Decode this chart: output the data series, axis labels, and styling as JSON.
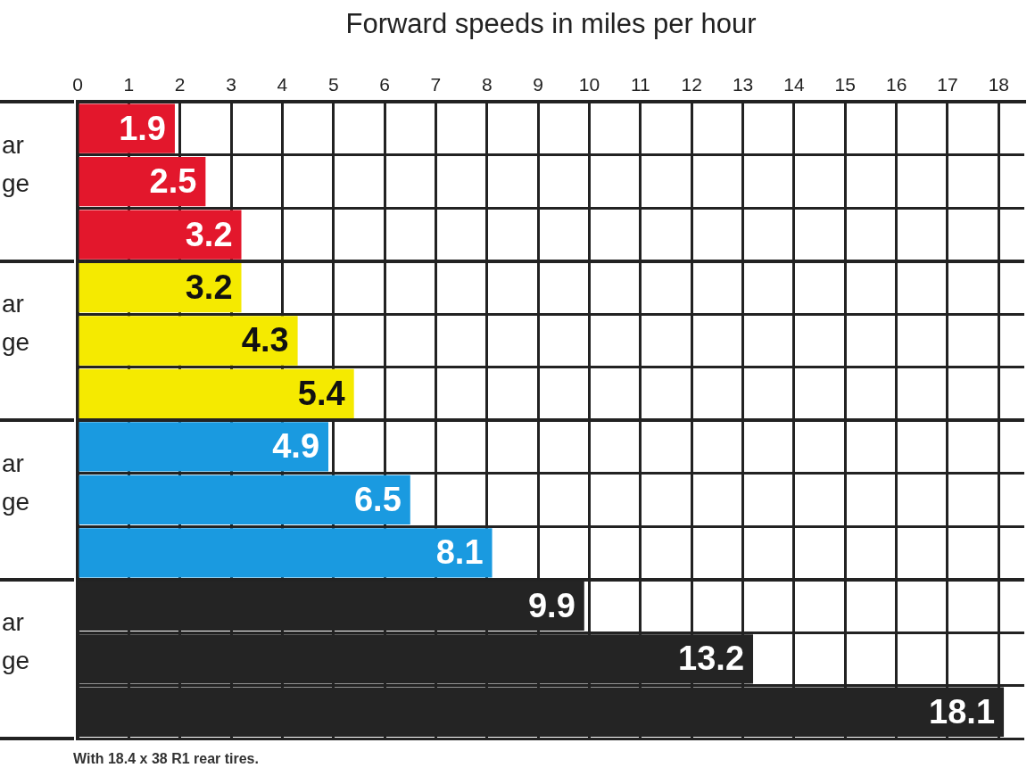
{
  "chart_data": {
    "type": "bar",
    "orientation": "horizontal",
    "xlabel": "Forward speeds in miles per hour",
    "categories": [
      null,
      null,
      null,
      null,
      null,
      null,
      null,
      null,
      null,
      null,
      null,
      null
    ],
    "values": [
      1.9,
      2.5,
      3.2,
      3.2,
      4.3,
      5.4,
      4.9,
      6.5,
      8.1,
      9.9,
      13.2,
      18.1
    ],
    "colors": [
      "#e3172c",
      "#e3172c",
      "#e3172c",
      "#f5ea00",
      "#f5ea00",
      "#f5ea00",
      "#1a9ae0",
      "#1a9ae0",
      "#1a9ae0",
      "#242424",
      "#242424",
      "#242424"
    ],
    "xlim": [
      0,
      18.5
    ],
    "xticks": [
      0,
      1,
      2,
      3,
      4,
      5,
      6,
      7,
      8,
      9,
      10,
      11,
      12,
      13,
      14,
      15,
      16,
      17,
      18
    ],
    "grid": true,
    "data_labels": true,
    "annotations": [
      "ar",
      "ge",
      "ar",
      "ge",
      "ar",
      "ge",
      "ar",
      "ge",
      "With 18.4 x 38 R1 rear tires."
    ]
  }
}
